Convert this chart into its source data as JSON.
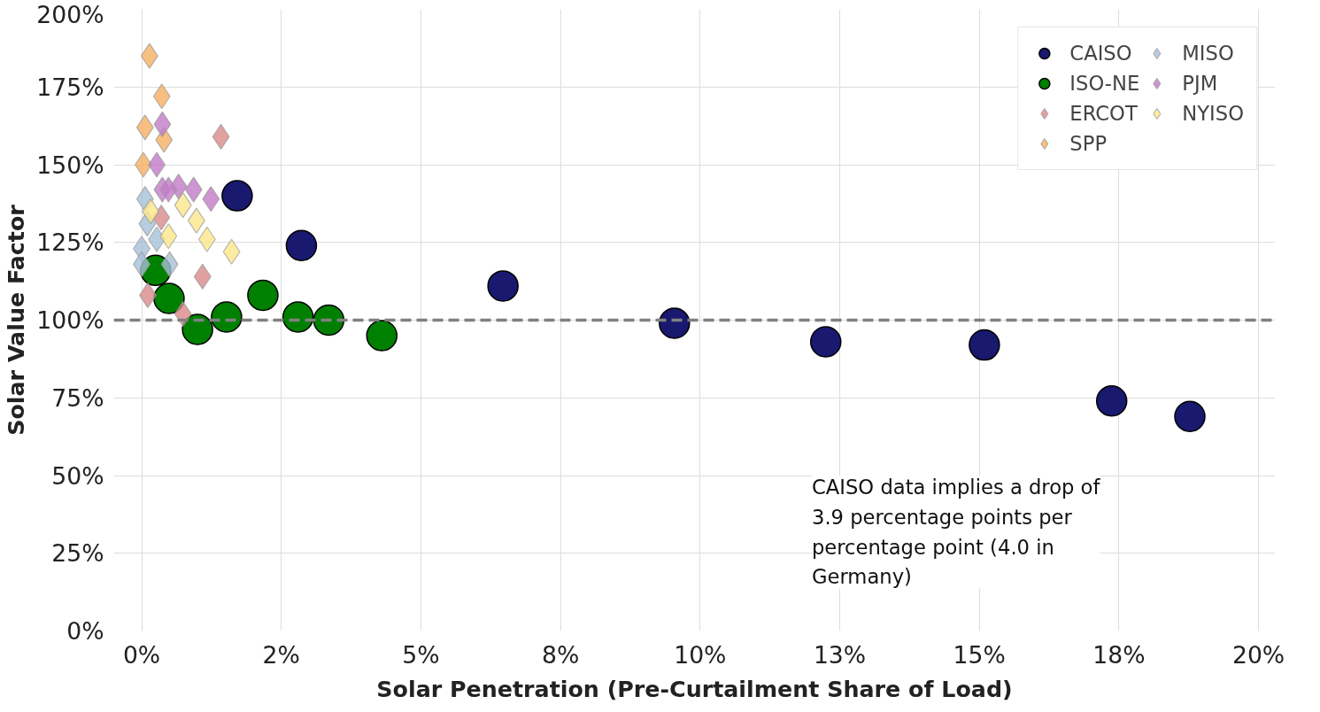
{
  "chart_data": {
    "type": "scatter",
    "xlabel": "Solar Penetration (Pre-Curtailment Share of Load)",
    "ylabel": "Solar Value Factor",
    "xlim": [
      -0.5,
      20.3
    ],
    "ylim": [
      0,
      200
    ],
    "xticks": [
      {
        "value": 0,
        "label": "0%"
      },
      {
        "value": 2.5,
        "label": "2%"
      },
      {
        "value": 5,
        "label": "5%"
      },
      {
        "value": 7.5,
        "label": "8%"
      },
      {
        "value": 10,
        "label": "10%"
      },
      {
        "value": 12.5,
        "label": "13%"
      },
      {
        "value": 15,
        "label": "15%"
      },
      {
        "value": 17.5,
        "label": "18%"
      },
      {
        "value": 20,
        "label": "20%"
      }
    ],
    "yticks": [
      {
        "value": 0,
        "label": "0%"
      },
      {
        "value": 25,
        "label": "25%"
      },
      {
        "value": 50,
        "label": "50%"
      },
      {
        "value": 75,
        "label": "75%"
      },
      {
        "value": 100,
        "label": "100%"
      },
      {
        "value": 125,
        "label": "125%"
      },
      {
        "value": 150,
        "label": "150%"
      },
      {
        "value": 175,
        "label": "175%"
      },
      {
        "value": 200,
        "label": "200%"
      }
    ],
    "grid": true,
    "legend": "top right",
    "ref_lines": [
      {
        "axis": "y",
        "value": 100,
        "label": null,
        "color": "#808080",
        "line_style": "dashed"
      }
    ],
    "annotations": [
      "CAISO data implies a drop of 3.9 percentage points per percentage point (4.0 in Germany)"
    ],
    "series": [
      {
        "name": "CAISO",
        "color": "#191970",
        "marker": "circle",
        "x": [
          1.71,
          2.86,
          6.47,
          9.54,
          12.25,
          15.09,
          17.37,
          18.77
        ],
        "values": [
          140,
          124,
          111,
          99,
          93,
          92,
          74,
          69
        ]
      },
      {
        "name": "ISO-NE",
        "color": "#008000",
        "marker": "circle",
        "x": [
          0.25,
          0.49,
          1.0,
          1.52,
          2.17,
          2.8,
          3.35,
          4.3
        ],
        "values": [
          116,
          107,
          97,
          101,
          108,
          101,
          100,
          95
        ]
      },
      {
        "name": "ERCOT",
        "color": "#d98a8a",
        "marker": "diamond",
        "x": [
          1.42,
          1.09,
          0.11,
          0.74,
          0.35
        ],
        "values": [
          159,
          114,
          108,
          102,
          133
        ]
      },
      {
        "name": "SPP",
        "color": "#f5b060",
        "marker": "diamond",
        "x": [
          0.14,
          0.36,
          0.06,
          0.4,
          0.03
        ],
        "values": [
          185,
          172,
          162,
          158,
          150
        ]
      },
      {
        "name": "MISO",
        "color": "#a8c0d8",
        "marker": "diamond",
        "x": [
          0.06,
          0.0,
          0.0,
          0.27,
          0.5,
          0.1
        ],
        "values": [
          139,
          123,
          118,
          126,
          118,
          131
        ]
      },
      {
        "name": "PJM",
        "color": "#c27bc7",
        "marker": "diamond",
        "x": [
          0.37,
          0.27,
          0.37,
          0.66,
          0.93,
          1.24,
          0.48
        ],
        "values": [
          163,
          150,
          142,
          143,
          142,
          139,
          142
        ]
      },
      {
        "name": "NYISO",
        "color": "#fbe78a",
        "marker": "diamond",
        "x": [
          0.16,
          0.74,
          0.98,
          0.48,
          1.17,
          1.61
        ],
        "values": [
          135,
          137,
          132,
          127,
          126,
          122
        ]
      }
    ]
  }
}
